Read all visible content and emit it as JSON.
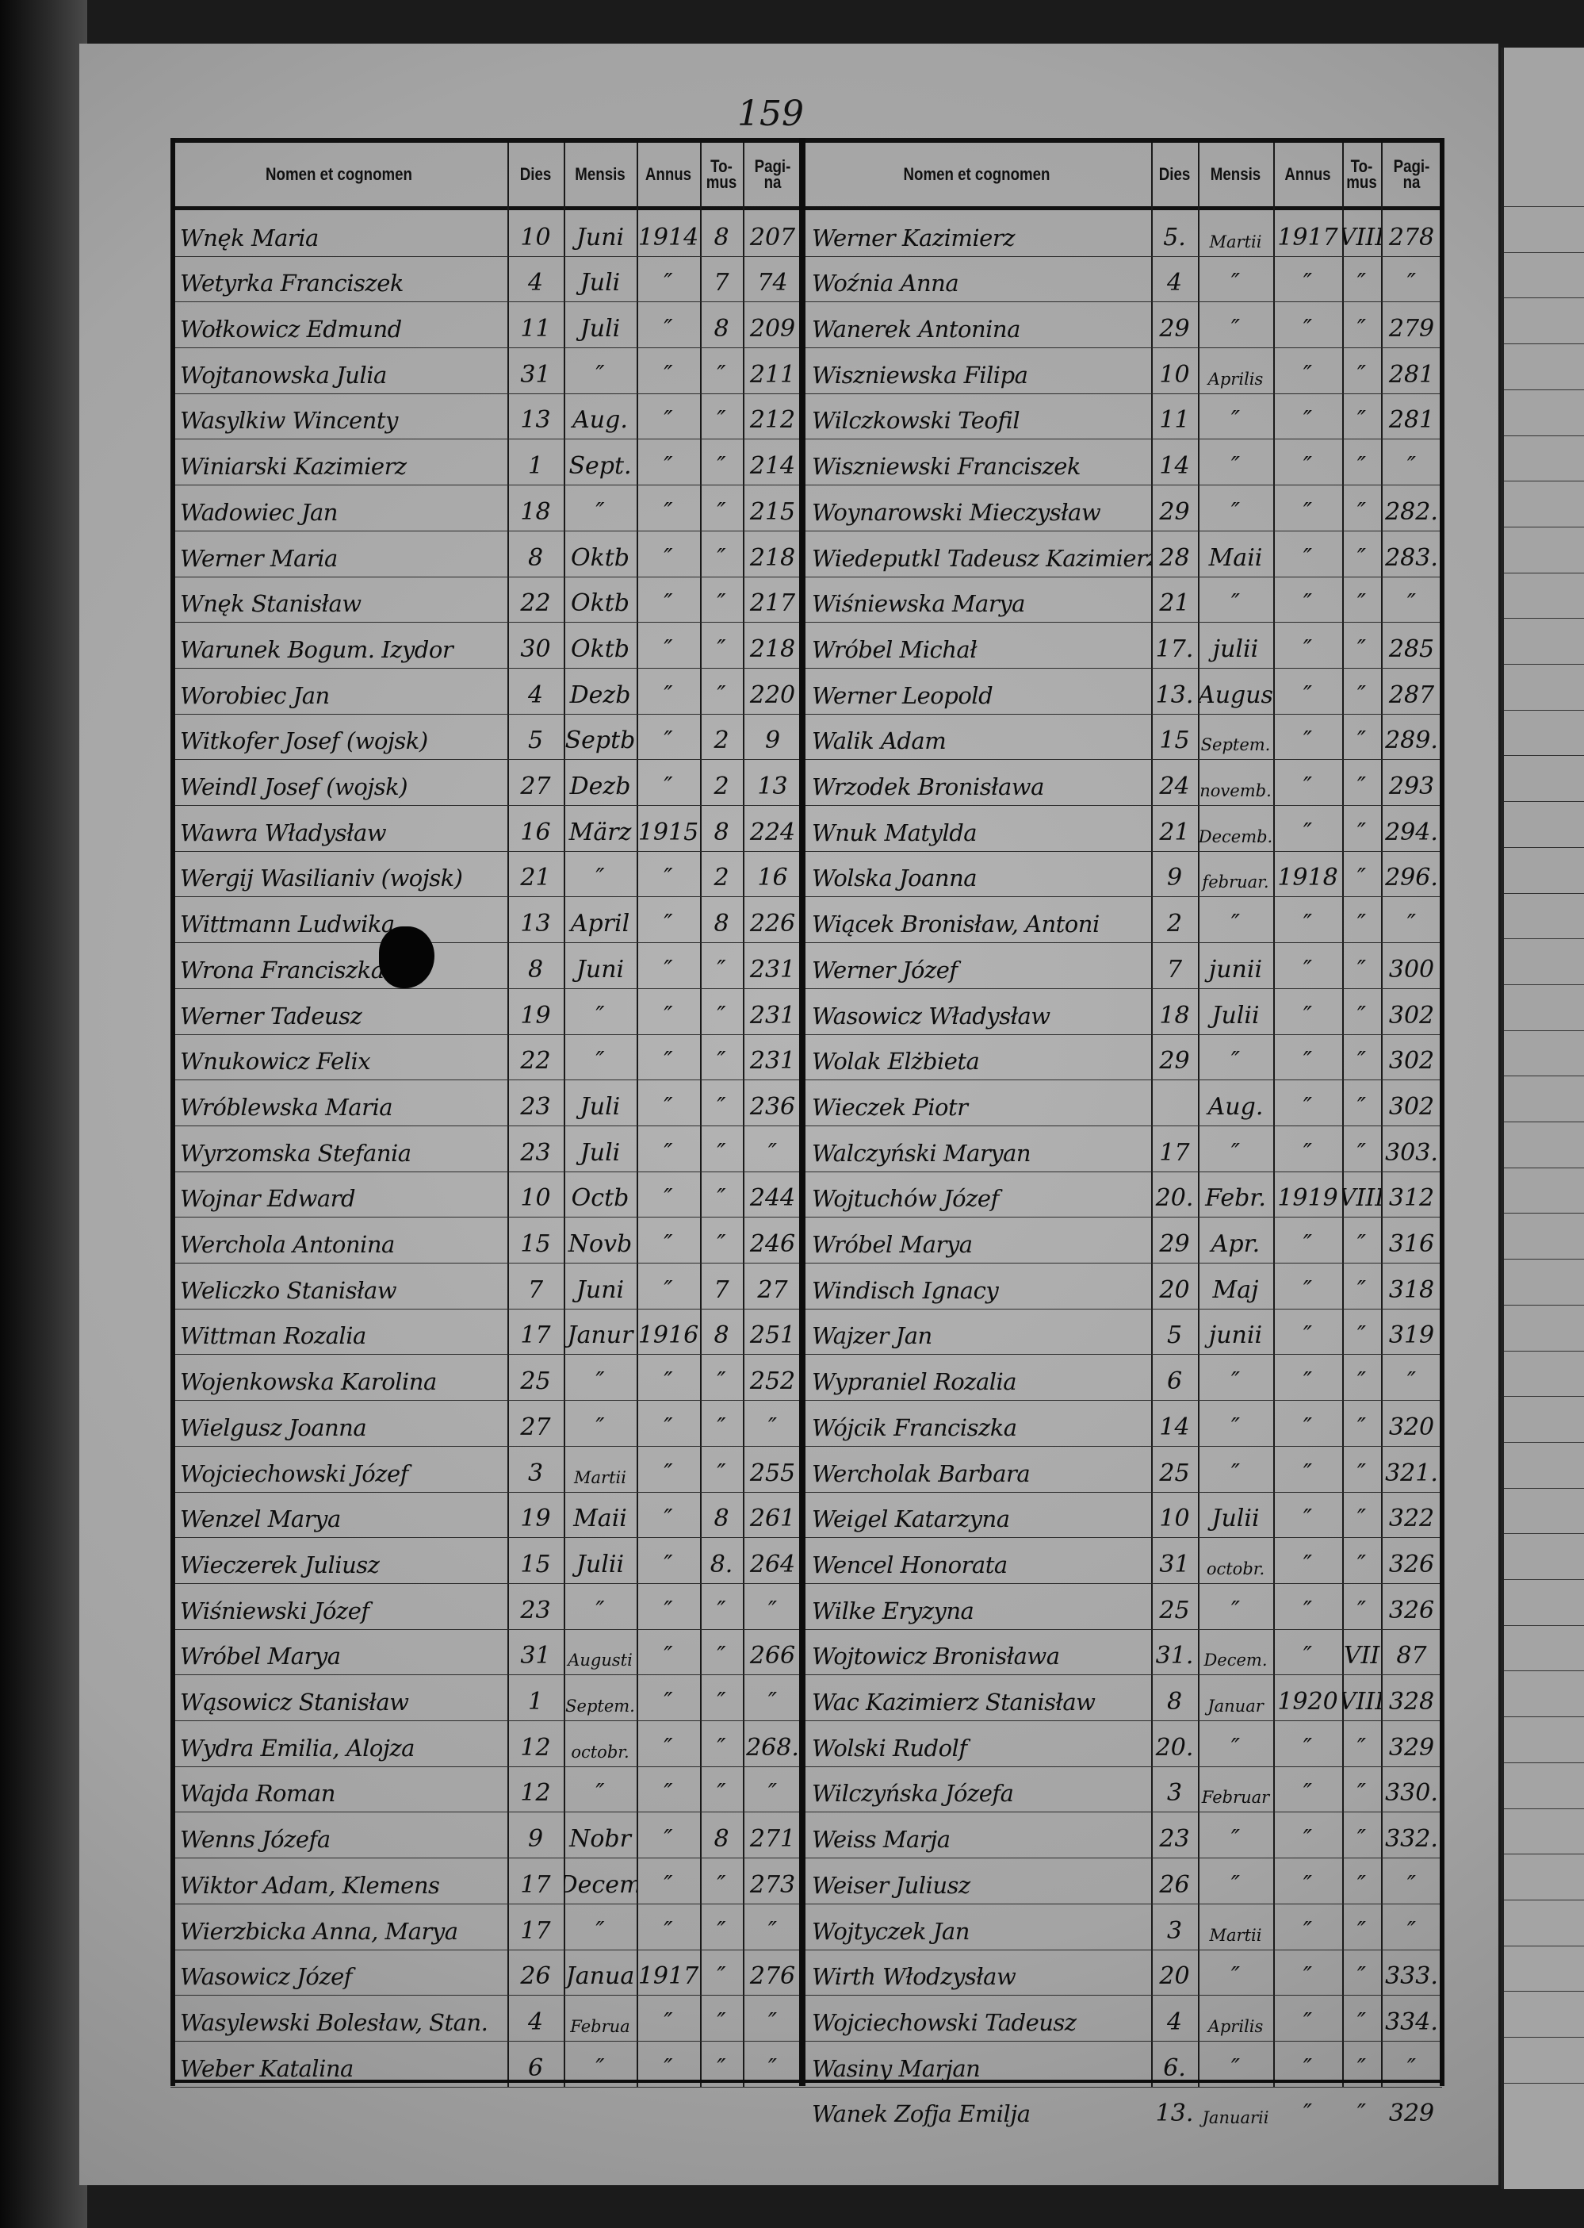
{
  "page_number": "159",
  "headers": {
    "name": "Nomen et cognomen",
    "dies": "Dies",
    "mensis": "Mensis",
    "annus": "Annus",
    "tomus": "To-\nmus",
    "pagina": "Pagi-\nna"
  },
  "left_entries": [
    [
      "Wnęk Maria",
      "10",
      "Juni",
      "1914",
      "8",
      "207"
    ],
    [
      "Wetyrka Franciszek",
      "4",
      "Juli",
      "″",
      "7",
      "74"
    ],
    [
      "Wołkowicz Edmund",
      "11",
      "Juli",
      "″",
      "8",
      "209"
    ],
    [
      "Wojtanowska Julia",
      "31",
      "″",
      "″",
      "″",
      "211"
    ],
    [
      "Wasylkiw Wincenty",
      "13",
      "Aug.",
      "″",
      "″",
      "212"
    ],
    [
      "Winiarski Kazimierz",
      "1",
      "Sept.",
      "″",
      "″",
      "214"
    ],
    [
      "Wadowiec Jan",
      "18",
      "″",
      "″",
      "″",
      "215"
    ],
    [
      "Werner Maria",
      "8",
      "Oktb",
      "″",
      "″",
      "218"
    ],
    [
      "Wnęk Stanisław",
      "22",
      "Oktb",
      "″",
      "″",
      "217"
    ],
    [
      "Warunek Bogum. Izydor",
      "30",
      "Oktb",
      "″",
      "″",
      "218"
    ],
    [
      "Worobiec Jan",
      "4",
      "Dezb",
      "″",
      "″",
      "220"
    ],
    [
      "Witkofer Josef (wojsk)",
      "5",
      "Septb",
      "″",
      "2",
      "9"
    ],
    [
      "Weindl Josef (wojsk)",
      "27",
      "Dezb",
      "″",
      "2",
      "13"
    ],
    [
      "Wawra Władysław",
      "16",
      "März",
      "1915",
      "8",
      "224"
    ],
    [
      "Wergij Wasilianiv (wojsk)",
      "21",
      "″",
      "″",
      "2",
      "16"
    ],
    [
      "Wittmann Ludwika",
      "13",
      "April",
      "″",
      "8",
      "226"
    ],
    [
      "Wrona Franciszka",
      "8",
      "Juni",
      "″",
      "″",
      "231"
    ],
    [
      "Werner Tadeusz",
      "19",
      "″",
      "″",
      "″",
      "231"
    ],
    [
      "Wnukowicz Felix",
      "22",
      "″",
      "″",
      "″",
      "231"
    ],
    [
      "Wróblewska Maria",
      "23",
      "Juli",
      "″",
      "″",
      "236"
    ],
    [
      "Wyrzomska Stefania",
      "23",
      "Juli",
      "″",
      "″",
      "″"
    ],
    [
      "Wojnar Edward",
      "10",
      "Octb",
      "″",
      "″",
      "244"
    ],
    [
      "Werchola Antonina",
      "15",
      "Novb",
      "″",
      "″",
      "246"
    ],
    [
      "Weliczko Stanisław",
      "7",
      "Juni",
      "″",
      "7",
      "27"
    ],
    [
      "Wittman Rozalia",
      "17",
      "Janur",
      "1916",
      "8",
      "251"
    ],
    [
      "Wojenkowska Karolina",
      "25",
      "″",
      "″",
      "″",
      "252"
    ],
    [
      "Wielgusz Joanna",
      "27",
      "″",
      "″",
      "″",
      "″"
    ],
    [
      "Wojciechowski Józef",
      "3",
      "Martii",
      "″",
      "″",
      "255"
    ],
    [
      "Wenzel Marya",
      "19",
      "Maii",
      "″",
      "8",
      "261"
    ],
    [
      "Wieczerek Juliusz",
      "15",
      "Julii",
      "″",
      "8.",
      "264"
    ],
    [
      "Wiśniewski Józef",
      "23",
      "″",
      "″",
      "″",
      "″"
    ],
    [
      "Wróbel Marya",
      "31",
      "Augusti",
      "″",
      "″",
      "266"
    ],
    [
      "Wąsowicz Stanisław",
      "1",
      "Septem.",
      "″",
      "″",
      "″"
    ],
    [
      "Wydra Emilia, Alojza",
      "12",
      "octobr.",
      "″",
      "″",
      "268."
    ],
    [
      "Wajda Roman",
      "12",
      "″",
      "″",
      "″",
      "″"
    ],
    [
      "Wenns Józefa",
      "9",
      "Nobr",
      "″",
      "8",
      "271"
    ],
    [
      "Wiktor Adam, Klemens",
      "17",
      "Decem",
      "″",
      "″",
      "273"
    ],
    [
      "Wierzbicka Anna, Marya",
      "17",
      "″",
      "″",
      "″",
      "″"
    ],
    [
      "Wasowicz Józef",
      "26",
      "Janua",
      "1917",
      "″",
      "276"
    ],
    [
      "Wasylewski Bolesław, Stan.",
      "4",
      "Februa",
      "″",
      "″",
      "″"
    ],
    [
      "Weber Katalina",
      "6",
      "″",
      "″",
      "″",
      "″"
    ]
  ],
  "right_entries": [
    [
      "Werner Kazimierz",
      "5.",
      "Martii",
      "1917",
      "VIII",
      "278"
    ],
    [
      "Woźnia Anna",
      "4",
      "″",
      "″",
      "″",
      "″"
    ],
    [
      "Wanerek Antonina",
      "29",
      "″",
      "″",
      "″",
      "279"
    ],
    [
      "Wiszniewska Filipa",
      "10",
      "Aprilis",
      "″",
      "″",
      "281"
    ],
    [
      "Wilczkowski Teofil",
      "11",
      "″",
      "″",
      "″",
      "281"
    ],
    [
      "Wiszniewski Franciszek",
      "14",
      "″",
      "″",
      "″",
      "″"
    ],
    [
      "Woynarowski Mieczysław",
      "29",
      "″",
      "″",
      "″",
      "282."
    ],
    [
      "Wiedeputkl Tadeusz Kazimierz",
      "28",
      "Maii",
      "″",
      "″",
      "283."
    ],
    [
      "Wiśniewska Marya",
      "21",
      "″",
      "″",
      "″",
      "″"
    ],
    [
      "Wróbel Michał",
      "17.",
      "julii",
      "″",
      "″",
      "285"
    ],
    [
      "Werner Leopold",
      "13.",
      "Augus",
      "″",
      "″",
      "287"
    ],
    [
      "Walik Adam",
      "15",
      "Septem.",
      "″",
      "″",
      "289."
    ],
    [
      "Wrzodek Bronisława",
      "24",
      "novemb.",
      "″",
      "″",
      "293"
    ],
    [
      "Wnuk Matylda",
      "21",
      "Decemb.",
      "″",
      "″",
      "294."
    ],
    [
      "Wolska Joanna",
      "9",
      "februar.",
      "1918",
      "″",
      "296."
    ],
    [
      "Wiącek Bronisław, Antoni",
      "2",
      "″",
      "″",
      "″",
      "″"
    ],
    [
      "Werner Józef",
      "7",
      "junii",
      "″",
      "″",
      "300"
    ],
    [
      "Wasowicz Władysław",
      "18",
      "Julii",
      "″",
      "″",
      "302"
    ],
    [
      "Wolak Elżbieta",
      "29",
      "″",
      "″",
      "″",
      "302"
    ],
    [
      "Wieczek Piotr",
      "",
      "Aug.",
      "″",
      "″",
      "302"
    ],
    [
      "Walczyński Maryan",
      "17",
      "″",
      "″",
      "″",
      "303."
    ],
    [
      "Wojtuchów Józef",
      "20.",
      "Febr.",
      "1919",
      "VIII",
      "312"
    ],
    [
      "Wróbel Marya",
      "29",
      "Apr.",
      "″",
      "″",
      "316"
    ],
    [
      "Windisch Ignacy",
      "20",
      "Maj",
      "″",
      "″",
      "318"
    ],
    [
      "Wajzer Jan",
      "5",
      "junii",
      "″",
      "″",
      "319"
    ],
    [
      "Wypraniel Rozalia",
      "6",
      "″",
      "″",
      "″",
      "″"
    ],
    [
      "Wójcik Franciszka",
      "14",
      "″",
      "″",
      "″",
      "320"
    ],
    [
      "Wercholak Barbara",
      "25",
      "″",
      "″",
      "″",
      "321."
    ],
    [
      "Weigel Katarzyna",
      "10",
      "Julii",
      "″",
      "″",
      "322"
    ],
    [
      "Wencel Honorata",
      "31",
      "octobr.",
      "″",
      "″",
      "326"
    ],
    [
      "Wilke Eryzyna",
      "25",
      "″",
      "″",
      "″",
      "326"
    ],
    [
      "Wojtowicz Bronisława",
      "31.",
      "Decem.",
      "″",
      "VII",
      "87"
    ],
    [
      "Wac Kazimierz Stanisław",
      "8",
      "Januar",
      "1920",
      "VIII",
      "328"
    ],
    [
      "Wolski Rudolf",
      "20.",
      "″",
      "″",
      "″",
      "329"
    ],
    [
      "Wilczyńska Józefa",
      "3",
      "Februar",
      "″",
      "″",
      "330."
    ],
    [
      "Weiss Marja",
      "23",
      "″",
      "″",
      "″",
      "332."
    ],
    [
      "Weiser Juliusz",
      "26",
      "″",
      "″",
      "″",
      "″"
    ],
    [
      "Wojtyczek Jan",
      "3",
      "Martii",
      "″",
      "″",
      "″"
    ],
    [
      "Wirth Włodzysław",
      "20",
      "″",
      "″",
      "″",
      "333."
    ],
    [
      "Wojciechowski Tadeusz",
      "4",
      "Aprilis",
      "″",
      "″",
      "334."
    ],
    [
      "Wasiny Marjan",
      "6.",
      "″",
      "″",
      "″",
      "″"
    ],
    [
      "Wanek Zofja Emilja",
      "13.",
      "Januarii",
      "″",
      "″",
      "329"
    ]
  ]
}
